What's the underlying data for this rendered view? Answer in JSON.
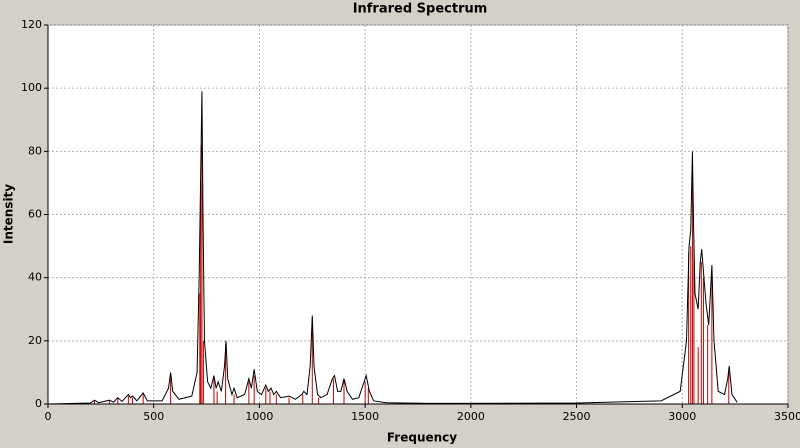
{
  "chart_data": {
    "type": "line",
    "title": "Infrared Spectrum",
    "x_label": "Frequency",
    "y_label": "Intensity",
    "xlim": [
      0,
      3500
    ],
    "ylim": [
      0,
      120
    ],
    "xticks": [
      0,
      500,
      1000,
      1500,
      2000,
      2500,
      3000,
      3500
    ],
    "yticks": [
      0,
      20,
      40,
      60,
      80,
      100,
      120
    ],
    "grid": true,
    "series": [
      {
        "style": "sticks",
        "color": "#c00000",
        "x": [
          220,
          290,
          330,
          380,
          400,
          450,
          580,
          718,
          722,
          728,
          735,
          785,
          800,
          840,
          880,
          950,
          975,
          1030,
          1050,
          1080,
          1140,
          1205,
          1250,
          1280,
          1350,
          1400,
          1500,
          1515,
          3030,
          3040,
          3048,
          3055,
          3075,
          3090,
          3100,
          3120,
          3140,
          3220
        ],
        "values": [
          1,
          1,
          2,
          2.5,
          2,
          3,
          9,
          35,
          70,
          82,
          20,
          8,
          4,
          19,
          3,
          7,
          9,
          5,
          4,
          3,
          2,
          3,
          27,
          2,
          8,
          8,
          7,
          5,
          48,
          50,
          70,
          52,
          18,
          45,
          40,
          25,
          42,
          10
        ]
      },
      {
        "style": "line",
        "color": "#000000",
        "x": [
          0,
          200,
          220,
          240,
          290,
          310,
          330,
          350,
          380,
          390,
          400,
          420,
          450,
          470,
          540,
          570,
          580,
          590,
          620,
          680,
          705,
          715,
          722,
          728,
          733,
          740,
          755,
          770,
          785,
          795,
          805,
          820,
          835,
          842,
          850,
          870,
          880,
          895,
          930,
          950,
          962,
          975,
          990,
          1010,
          1030,
          1042,
          1055,
          1068,
          1080,
          1100,
          1140,
          1170,
          1200,
          1210,
          1225,
          1240,
          1250,
          1258,
          1275,
          1290,
          1320,
          1345,
          1355,
          1370,
          1385,
          1400,
          1415,
          1440,
          1470,
          1495,
          1505,
          1520,
          1540,
          1600,
          1800,
          2500,
          2900,
          2990,
          3020,
          3032,
          3040,
          3048,
          3053,
          3060,
          3075,
          3085,
          3092,
          3100,
          3112,
          3125,
          3140,
          3150,
          3170,
          3200,
          3215,
          3222,
          3235,
          3260
        ],
        "values": [
          0,
          0.3,
          1.2,
          0.4,
          1.2,
          0.6,
          2,
          0.8,
          3,
          2,
          2.5,
          1,
          3.5,
          1,
          1,
          5,
          10,
          4,
          1.5,
          2.5,
          10,
          40,
          72,
          99,
          60,
          20,
          7,
          5,
          9,
          5,
          7,
          4,
          12,
          20,
          8,
          3,
          5,
          2,
          3,
          8,
          5,
          11,
          4,
          3,
          6,
          4,
          5,
          3,
          4,
          2,
          2.5,
          1.5,
          3,
          4,
          3,
          12,
          28,
          12,
          3,
          2,
          3,
          8,
          9,
          4,
          4,
          8,
          4,
          1.5,
          2,
          7,
          9,
          4,
          1,
          0.4,
          0.2,
          0.3,
          1,
          4,
          20,
          50,
          55,
          80,
          58,
          35,
          30,
          45,
          49,
          42,
          32,
          25,
          44,
          20,
          4,
          3,
          8,
          12,
          3,
          0.5
        ]
      }
    ]
  }
}
